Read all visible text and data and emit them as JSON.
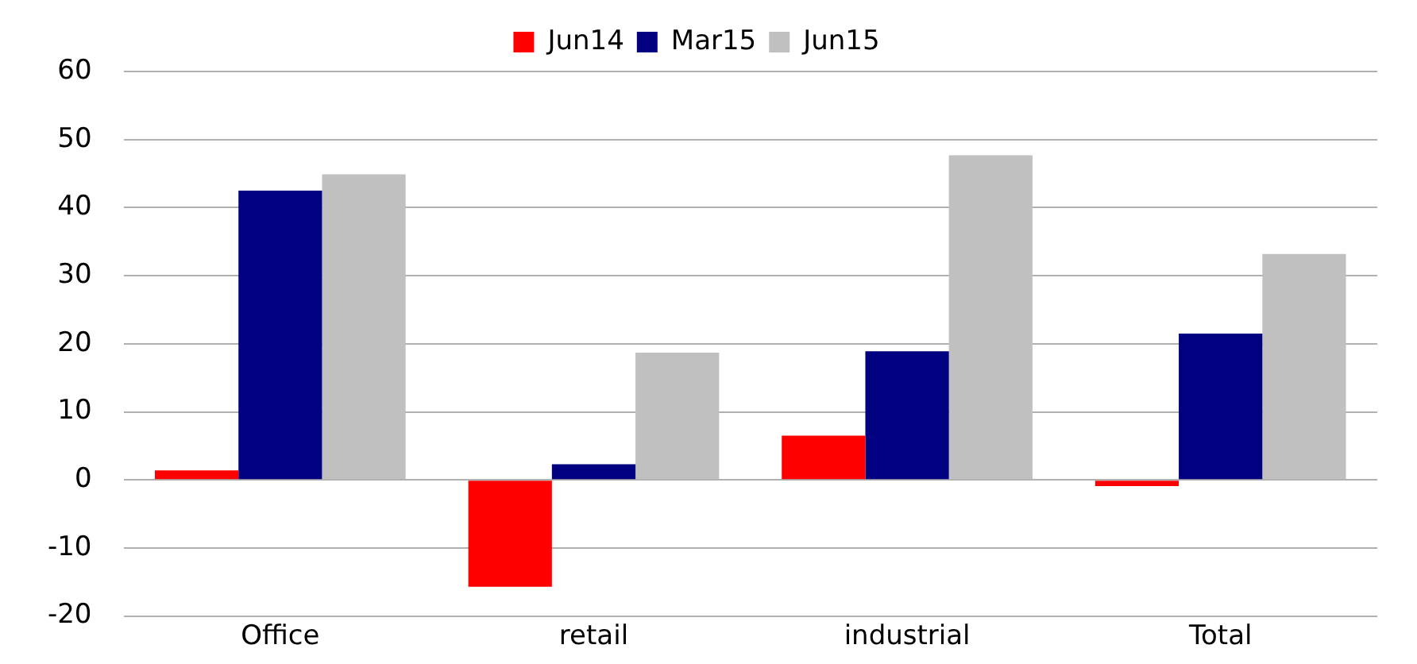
{
  "chart_data": {
    "type": "bar",
    "categories": [
      "Office",
      "retail",
      "industrial",
      "Total"
    ],
    "series": [
      {
        "name": "Jun14",
        "color": "#ff0000",
        "values": [
          1.4,
          -15.7,
          6.5,
          -0.9
        ]
      },
      {
        "name": "Mar15",
        "color": "#000080",
        "values": [
          42.5,
          2.3,
          18.9,
          21.5
        ]
      },
      {
        "name": "Jun15",
        "color": "#c0c0c0",
        "values": [
          44.9,
          18.7,
          47.7,
          33.2
        ]
      }
    ],
    "ylim": [
      -20,
      60
    ],
    "yticks": [
      -20,
      -10,
      0,
      10,
      20,
      30,
      40,
      50,
      60
    ],
    "grid": "y",
    "legend": "top"
  }
}
